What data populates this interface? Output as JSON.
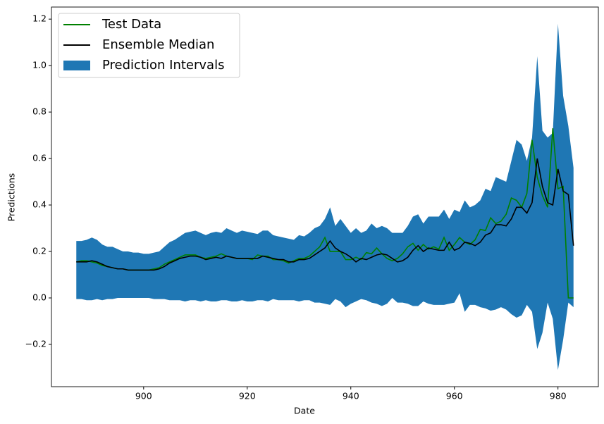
{
  "chart_data": {
    "type": "line",
    "xlabel": "Date",
    "ylabel": "Predictions",
    "xlim": [
      882.2,
      987.8
    ],
    "ylim": [
      -0.382,
      1.252
    ],
    "xticks": [
      900,
      920,
      940,
      960,
      980
    ],
    "yticks": [
      {
        "value": -0.2,
        "label": "−0.2"
      },
      {
        "value": 0,
        "label": "0.0"
      },
      0.2,
      0.4,
      0.6,
      0.8,
      {
        "value": 1,
        "label": "1.0"
      },
      1.2
    ],
    "legend": "upper left",
    "x": [
      887,
      888,
      889,
      890,
      891,
      892,
      893,
      894,
      895,
      896,
      897,
      898,
      899,
      900,
      901,
      902,
      903,
      904,
      905,
      906,
      907,
      908,
      909,
      910,
      911,
      912,
      913,
      914,
      915,
      916,
      917,
      918,
      919,
      920,
      921,
      922,
      923,
      924,
      925,
      926,
      927,
      928,
      929,
      930,
      931,
      932,
      933,
      934,
      935,
      936,
      937,
      938,
      939,
      940,
      941,
      942,
      943,
      944,
      945,
      946,
      947,
      948,
      949,
      950,
      951,
      952,
      953,
      954,
      955,
      956,
      957,
      958,
      959,
      960,
      961,
      962,
      963,
      964,
      965,
      966,
      967,
      968,
      969,
      970,
      971,
      972,
      973,
      974,
      975,
      976,
      977,
      978,
      979,
      980,
      981,
      982,
      983
    ],
    "series": [
      {
        "name": "Test Data",
        "color": "green",
        "values": [
          0.155,
          0.16,
          0.16,
          0.155,
          0.15,
          0.14,
          0.135,
          0.13,
          0.125,
          0.125,
          0.12,
          0.12,
          0.12,
          0.12,
          0.12,
          0.125,
          0.13,
          0.145,
          0.155,
          0.165,
          0.175,
          0.185,
          0.185,
          0.185,
          0.175,
          0.17,
          0.175,
          0.18,
          0.19,
          0.18,
          0.175,
          0.17,
          0.17,
          0.17,
          0.165,
          0.185,
          0.18,
          0.18,
          0.165,
          0.165,
          0.16,
          0.15,
          0.16,
          0.17,
          0.17,
          0.18,
          0.2,
          0.22,
          0.26,
          0.2,
          0.2,
          0.2,
          0.165,
          0.165,
          0.175,
          0.165,
          0.195,
          0.19,
          0.215,
          0.19,
          0.17,
          0.16,
          0.17,
          0.19,
          0.22,
          0.235,
          0.205,
          0.23,
          0.21,
          0.22,
          0.21,
          0.26,
          0.205,
          0.23,
          0.26,
          0.24,
          0.23,
          0.25,
          0.295,
          0.29,
          0.345,
          0.32,
          0.33,
          0.36,
          0.43,
          0.42,
          0.39,
          0.45,
          0.68,
          0.52,
          0.44,
          0.39,
          0.73,
          0.47,
          0.48,
          0.0,
          0.0
        ]
      },
      {
        "name": "Ensemble Median",
        "color": "black",
        "values": [
          0.155,
          0.155,
          0.155,
          0.16,
          0.155,
          0.145,
          0.135,
          0.13,
          0.125,
          0.125,
          0.12,
          0.12,
          0.12,
          0.12,
          0.12,
          0.12,
          0.125,
          0.135,
          0.15,
          0.16,
          0.17,
          0.175,
          0.18,
          0.18,
          0.175,
          0.165,
          0.17,
          0.175,
          0.17,
          0.18,
          0.175,
          0.17,
          0.17,
          0.17,
          0.17,
          0.17,
          0.18,
          0.175,
          0.17,
          0.165,
          0.165,
          0.155,
          0.155,
          0.165,
          0.165,
          0.17,
          0.185,
          0.2,
          0.215,
          0.245,
          0.215,
          0.2,
          0.19,
          0.175,
          0.155,
          0.17,
          0.165,
          0.175,
          0.185,
          0.19,
          0.185,
          0.17,
          0.155,
          0.16,
          0.175,
          0.205,
          0.225,
          0.2,
          0.215,
          0.21,
          0.205,
          0.205,
          0.24,
          0.205,
          0.215,
          0.24,
          0.235,
          0.225,
          0.24,
          0.27,
          0.28,
          0.315,
          0.315,
          0.31,
          0.34,
          0.39,
          0.39,
          0.365,
          0.41,
          0.6,
          0.48,
          0.41,
          0.4,
          0.555,
          0.46,
          0.445,
          0.225
        ]
      }
    ],
    "band": {
      "name": "Prediction Intervals",
      "color": "#1f77b4",
      "upper": [
        0.245,
        0.245,
        0.25,
        0.26,
        0.25,
        0.23,
        0.22,
        0.22,
        0.21,
        0.2,
        0.2,
        0.195,
        0.195,
        0.19,
        0.19,
        0.195,
        0.2,
        0.22,
        0.24,
        0.25,
        0.265,
        0.28,
        0.285,
        0.29,
        0.28,
        0.27,
        0.28,
        0.285,
        0.28,
        0.3,
        0.29,
        0.28,
        0.29,
        0.285,
        0.28,
        0.275,
        0.29,
        0.29,
        0.27,
        0.265,
        0.26,
        0.255,
        0.25,
        0.27,
        0.265,
        0.28,
        0.3,
        0.31,
        0.34,
        0.39,
        0.31,
        0.34,
        0.31,
        0.28,
        0.3,
        0.28,
        0.29,
        0.32,
        0.3,
        0.31,
        0.3,
        0.28,
        0.28,
        0.28,
        0.31,
        0.35,
        0.36,
        0.32,
        0.35,
        0.35,
        0.35,
        0.38,
        0.34,
        0.38,
        0.37,
        0.42,
        0.39,
        0.4,
        0.42,
        0.47,
        0.46,
        0.52,
        0.51,
        0.5,
        0.59,
        0.68,
        0.66,
        0.59,
        0.69,
        1.04,
        0.72,
        0.69,
        0.71,
        1.18,
        0.87,
        0.74,
        0.56
      ],
      "lower": [
        -0.005,
        -0.005,
        -0.01,
        -0.01,
        -0.005,
        -0.01,
        -0.005,
        -0.005,
        0.0,
        0.0,
        0.0,
        0.0,
        0.0,
        0.0,
        0.0,
        -0.005,
        -0.005,
        -0.005,
        -0.01,
        -0.01,
        -0.01,
        -0.015,
        -0.01,
        -0.01,
        -0.015,
        -0.01,
        -0.015,
        -0.015,
        -0.01,
        -0.01,
        -0.015,
        -0.015,
        -0.01,
        -0.015,
        -0.015,
        -0.01,
        -0.01,
        -0.015,
        -0.005,
        -0.01,
        -0.01,
        -0.01,
        -0.01,
        -0.015,
        -0.01,
        -0.01,
        -0.02,
        -0.02,
        -0.025,
        -0.03,
        -0.005,
        -0.015,
        -0.04,
        -0.025,
        -0.015,
        -0.005,
        -0.01,
        -0.02,
        -0.025,
        -0.035,
        -0.025,
        0.0,
        -0.02,
        -0.02,
        -0.025,
        -0.035,
        -0.035,
        -0.015,
        -0.025,
        -0.03,
        -0.03,
        -0.03,
        -0.025,
        -0.02,
        0.02,
        -0.06,
        -0.03,
        -0.03,
        -0.04,
        -0.045,
        -0.055,
        -0.05,
        -0.04,
        -0.05,
        -0.07,
        -0.085,
        -0.075,
        -0.03,
        -0.06,
        -0.22,
        -0.15,
        -0.02,
        -0.09,
        -0.31,
        -0.18,
        -0.02,
        -0.04
      ]
    }
  }
}
